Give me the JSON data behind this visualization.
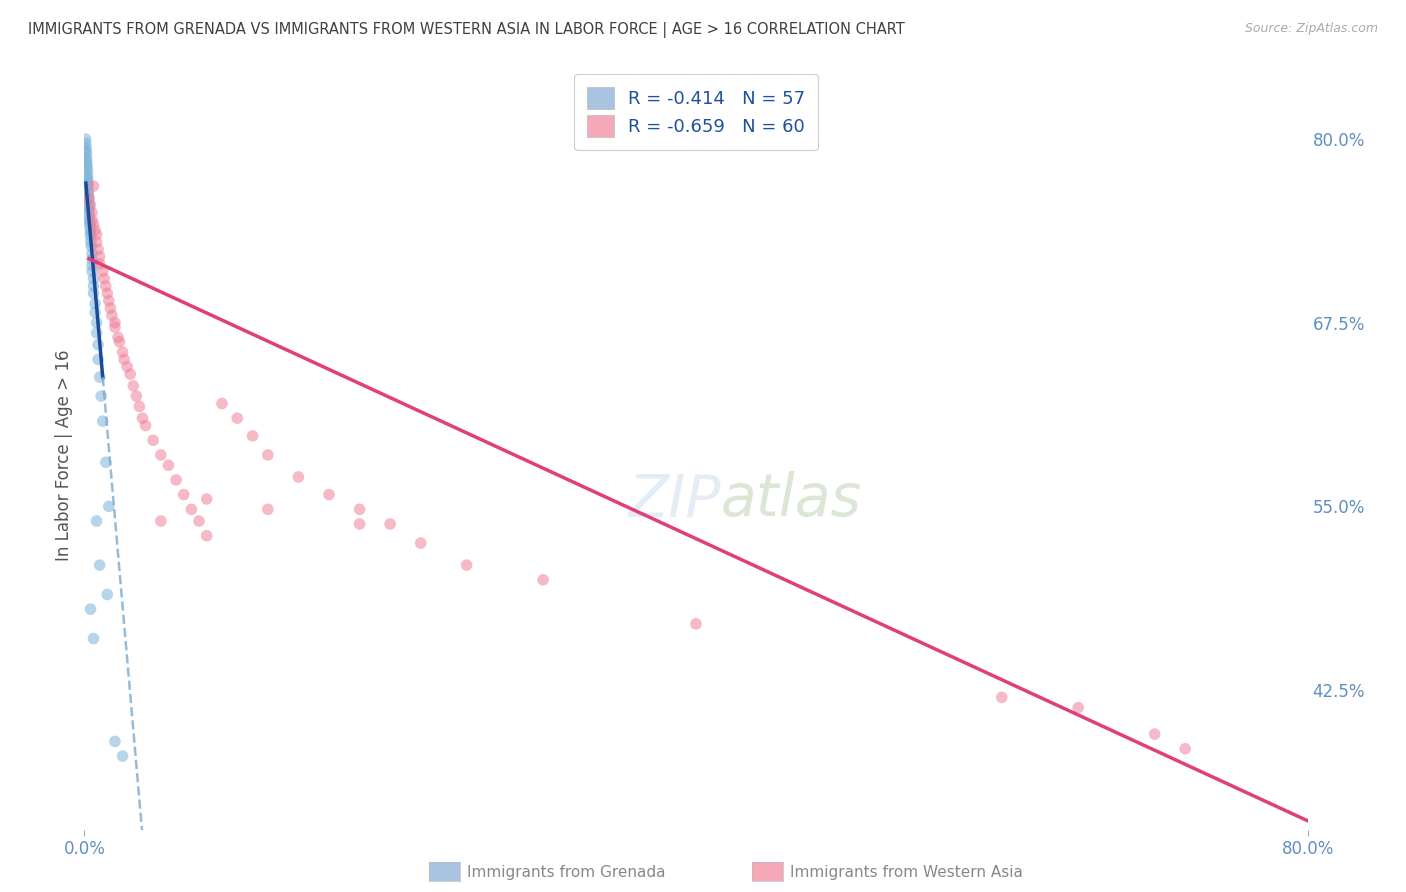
{
  "title": "IMMIGRANTS FROM GRENADA VS IMMIGRANTS FROM WESTERN ASIA IN LABOR FORCE | AGE > 16 CORRELATION CHART",
  "source": "Source: ZipAtlas.com",
  "ylabel": "In Labor Force | Age > 16",
  "y_tick_labels_right": [
    "80.0%",
    "67.5%",
    "55.0%",
    "42.5%"
  ],
  "y_tick_values_right": [
    0.8,
    0.675,
    0.55,
    0.425
  ],
  "legend_label1": "R = -0.414   N = 57",
  "legend_label2": "R = -0.659   N = 60",
  "legend_color1": "#a8c4e0",
  "legend_color2": "#f4a8b8",
  "footer_label1": "Immigrants from Grenada",
  "footer_label2": "Immigrants from Western Asia",
  "grenada_color": "#7ab3d9",
  "western_color": "#f08098",
  "trendline_grenada_solid_color": "#1a4a9a",
  "trendline_grenada_dash_color": "#7aaad0",
  "trendline_western_color": "#e0407a",
  "background_color": "#ffffff",
  "grid_color": "#d8d8d8",
  "title_color": "#404040",
  "axis_label_color": "#6090c0",
  "marker_size": 70,
  "marker_alpha": 0.55,
  "xlim": [
    0.0,
    0.8
  ],
  "ylim": [
    0.33,
    0.84
  ],
  "grenada_x": [
    0.0008,
    0.001,
    0.001,
    0.0012,
    0.0013,
    0.0015,
    0.0015,
    0.0016,
    0.0017,
    0.002,
    0.002,
    0.002,
    0.0022,
    0.0023,
    0.0024,
    0.0025,
    0.0026,
    0.0027,
    0.003,
    0.003,
    0.003,
    0.003,
    0.003,
    0.0032,
    0.0033,
    0.0035,
    0.0036,
    0.004,
    0.004,
    0.004,
    0.0042,
    0.0045,
    0.005,
    0.005,
    0.005,
    0.005,
    0.006,
    0.006,
    0.006,
    0.007,
    0.007,
    0.008,
    0.008,
    0.009,
    0.009,
    0.01,
    0.011,
    0.012,
    0.014,
    0.016,
    0.004,
    0.006,
    0.008,
    0.01,
    0.015,
    0.02,
    0.025
  ],
  "grenada_y": [
    0.8,
    0.797,
    0.794,
    0.792,
    0.79,
    0.787,
    0.785,
    0.783,
    0.781,
    0.779,
    0.776,
    0.774,
    0.772,
    0.77,
    0.768,
    0.765,
    0.763,
    0.761,
    0.759,
    0.756,
    0.754,
    0.752,
    0.75,
    0.747,
    0.745,
    0.743,
    0.741,
    0.738,
    0.736,
    0.734,
    0.73,
    0.727,
    0.722,
    0.718,
    0.714,
    0.71,
    0.705,
    0.7,
    0.695,
    0.688,
    0.682,
    0.675,
    0.668,
    0.66,
    0.65,
    0.638,
    0.625,
    0.608,
    0.58,
    0.55,
    0.48,
    0.46,
    0.54,
    0.51,
    0.49,
    0.39,
    0.38
  ],
  "western_x": [
    0.003,
    0.004,
    0.005,
    0.005,
    0.006,
    0.006,
    0.007,
    0.008,
    0.008,
    0.009,
    0.01,
    0.01,
    0.012,
    0.013,
    0.014,
    0.015,
    0.016,
    0.017,
    0.018,
    0.02,
    0.02,
    0.022,
    0.023,
    0.025,
    0.026,
    0.028,
    0.03,
    0.032,
    0.034,
    0.036,
    0.038,
    0.04,
    0.045,
    0.05,
    0.055,
    0.06,
    0.065,
    0.07,
    0.075,
    0.08,
    0.09,
    0.1,
    0.11,
    0.12,
    0.14,
    0.16,
    0.18,
    0.2,
    0.22,
    0.25,
    0.05,
    0.08,
    0.12,
    0.18,
    0.3,
    0.4,
    0.6,
    0.65,
    0.7,
    0.72
  ],
  "western_y": [
    0.76,
    0.755,
    0.75,
    0.745,
    0.742,
    0.768,
    0.738,
    0.735,
    0.73,
    0.725,
    0.72,
    0.715,
    0.71,
    0.705,
    0.7,
    0.695,
    0.69,
    0.685,
    0.68,
    0.675,
    0.672,
    0.665,
    0.662,
    0.655,
    0.65,
    0.645,
    0.64,
    0.632,
    0.625,
    0.618,
    0.61,
    0.605,
    0.595,
    0.585,
    0.578,
    0.568,
    0.558,
    0.548,
    0.54,
    0.53,
    0.62,
    0.61,
    0.598,
    0.585,
    0.57,
    0.558,
    0.548,
    0.538,
    0.525,
    0.51,
    0.54,
    0.555,
    0.548,
    0.538,
    0.5,
    0.47,
    0.42,
    0.413,
    0.395,
    0.385
  ],
  "grenada_trend_x0": 0.001,
  "grenada_trend_y0": 0.77,
  "grenada_trend_slope": -12.0,
  "western_trend_x0": 0.0,
  "western_trend_y0": 0.72,
  "western_trend_slope": -0.48
}
